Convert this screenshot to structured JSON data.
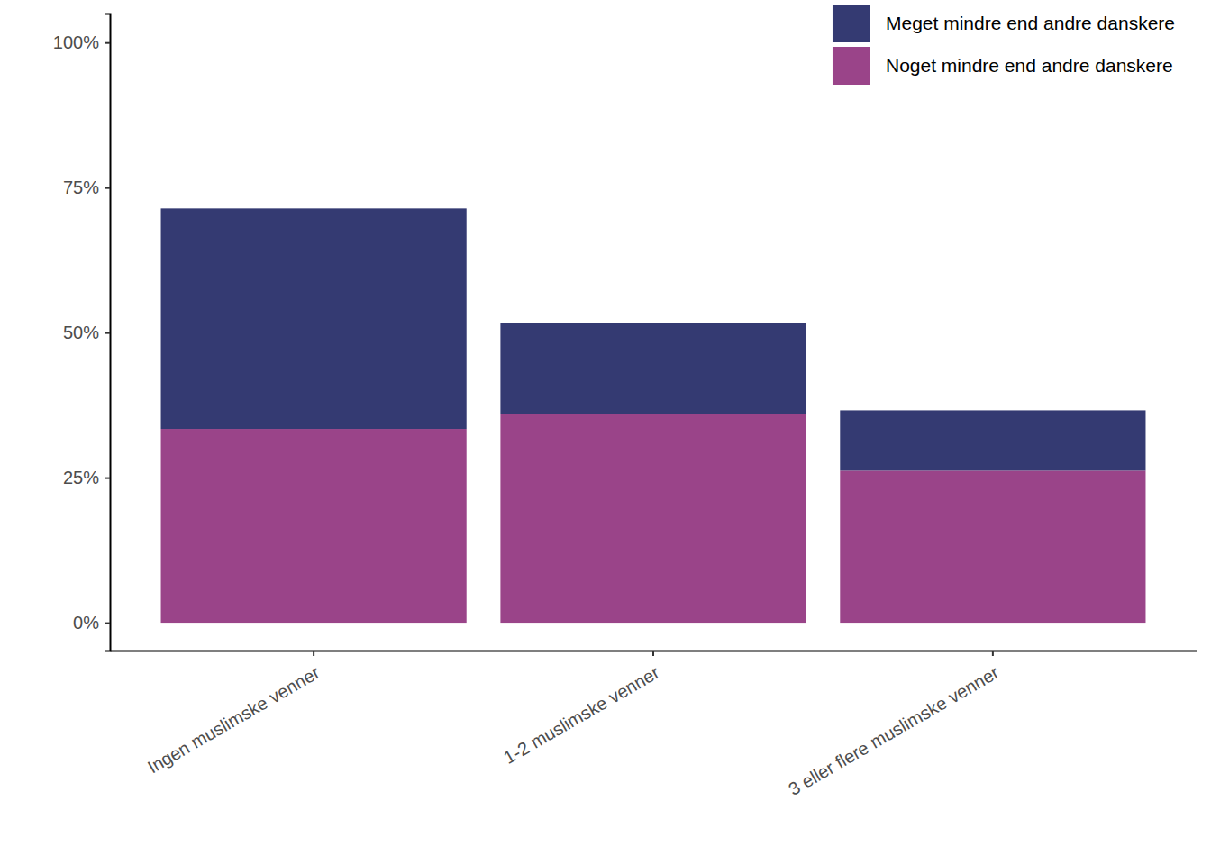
{
  "chart_data": {
    "type": "bar",
    "stacked": true,
    "legend": "top-right",
    "categories": [
      "Ingen muslimske venner",
      "1-2 muslimske venner",
      "3 eller flere muslimske venner"
    ],
    "series": [
      {
        "name": "Noget mindre end andre danskere",
        "color": "#9a4489",
        "values": [
          33.4,
          35.9,
          26.2
        ]
      },
      {
        "name": "Meget mindre end andre danskere",
        "color": "#343a72",
        "values": [
          38.0,
          15.8,
          10.4
        ]
      }
    ],
    "ylim": [
      -4.8,
      105
    ],
    "yticks": [
      {
        "value": 0,
        "label": "0%"
      },
      {
        "value": 25,
        "label": "25%"
      },
      {
        "value": 50,
        "label": "50%"
      },
      {
        "value": 75,
        "label": "75%"
      },
      {
        "value": 100,
        "label": "100%"
      }
    ],
    "grid": false
  }
}
